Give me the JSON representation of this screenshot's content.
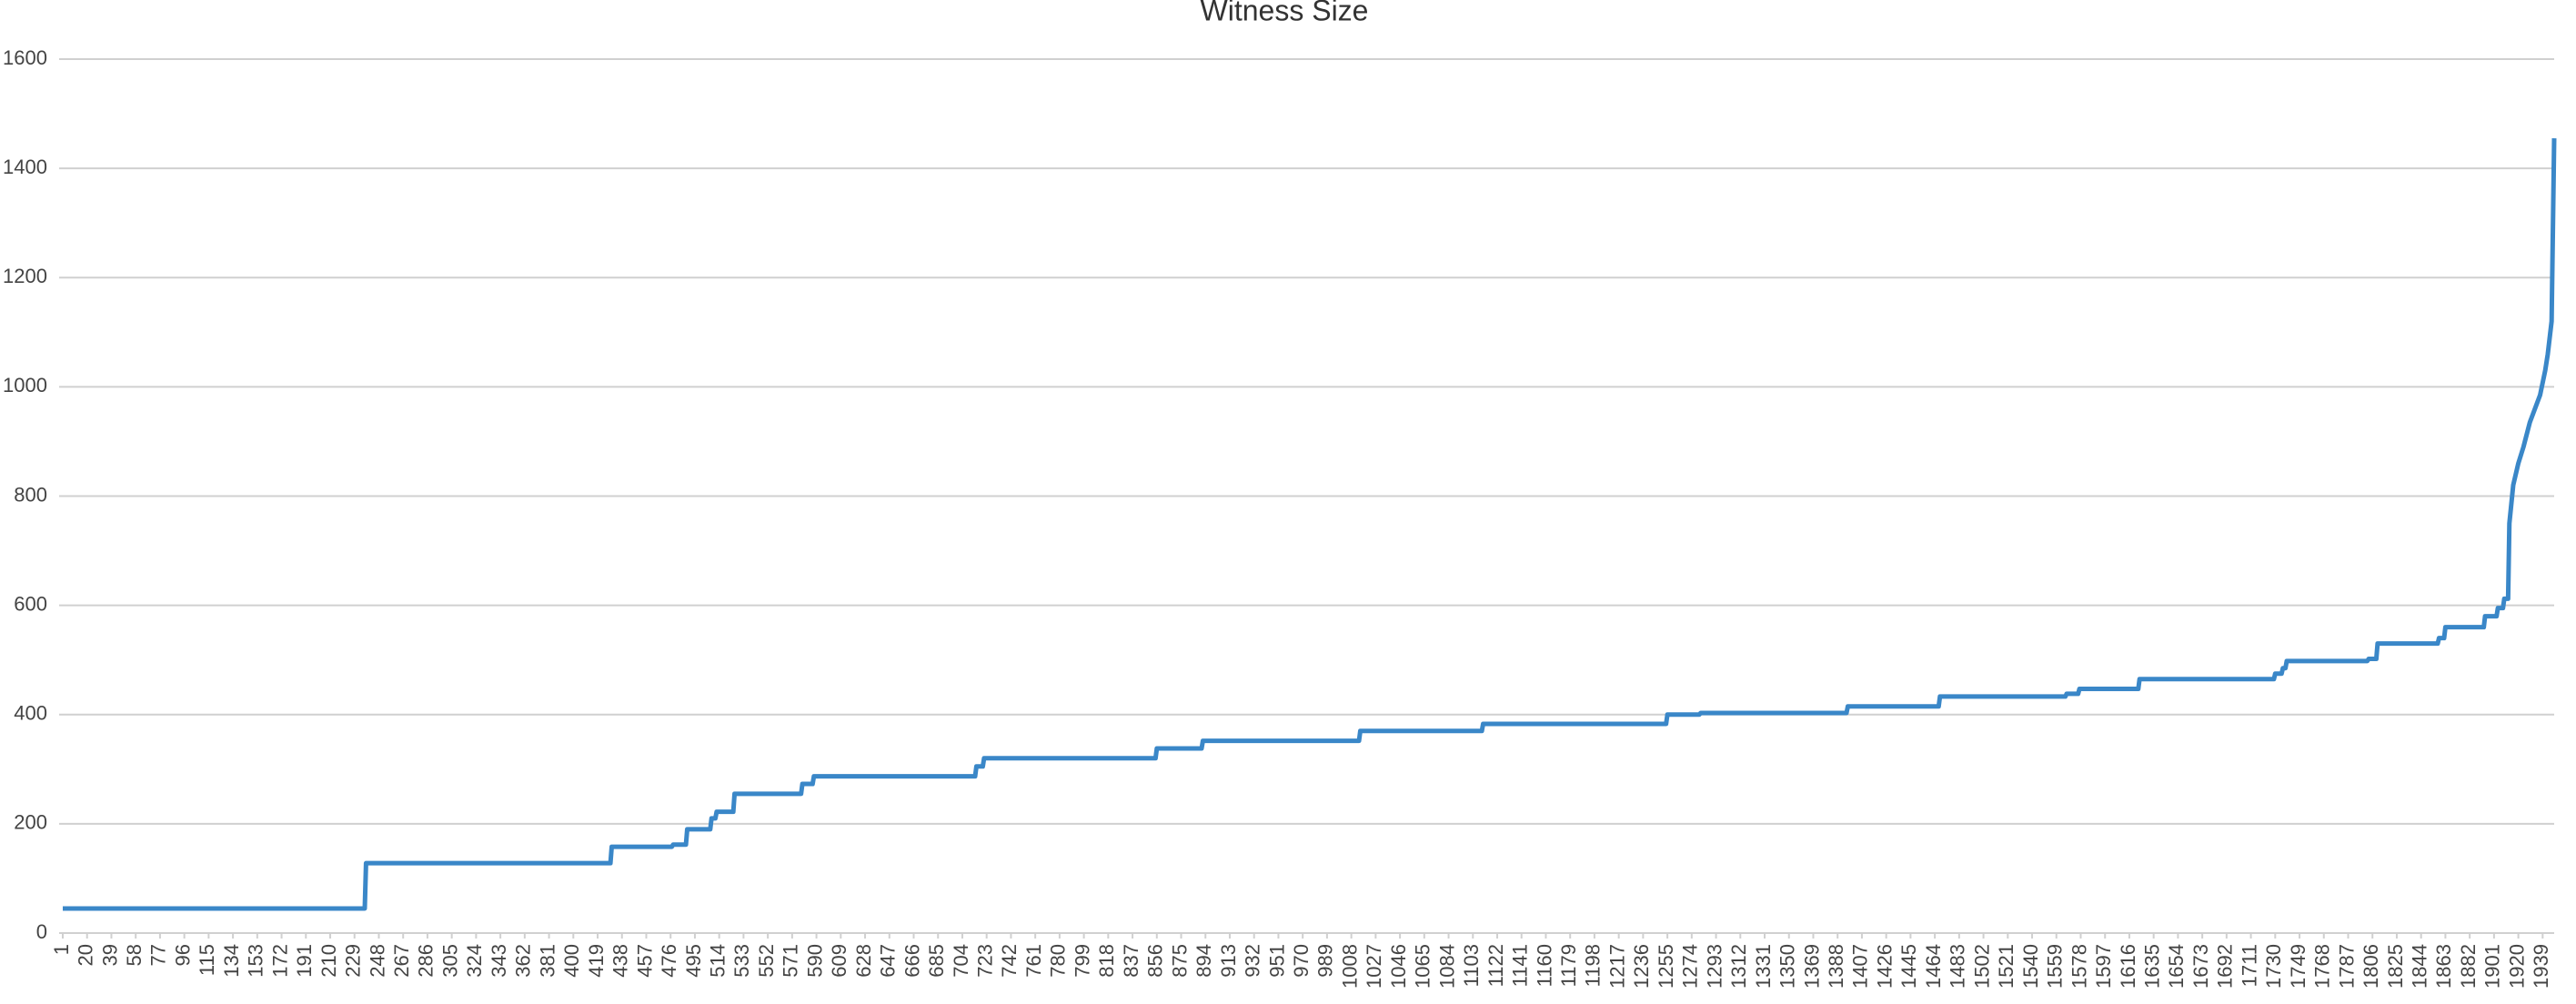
{
  "chart_data": {
    "type": "line",
    "title": "Witness Size",
    "x": [
      1,
      237,
      238,
      429,
      430,
      477,
      478,
      488,
      489,
      507,
      508,
      511,
      512,
      525,
      526,
      578,
      579,
      587,
      588,
      714,
      715,
      720,
      721,
      855,
      856,
      891,
      892,
      1014,
      1015,
      1110,
      1111,
      1254,
      1255,
      1280,
      1281,
      1395,
      1396,
      1467,
      1468,
      1566,
      1567,
      1576,
      1577,
      1623,
      1624,
      1729,
      1730,
      1735,
      1736,
      1738,
      1739,
      1802,
      1803,
      1809,
      1810,
      1857,
      1858,
      1862,
      1863,
      1893,
      1894,
      1903,
      1904,
      1908,
      1909,
      1912,
      1913,
      1916,
      1920,
      1924,
      1929,
      1933,
      1937,
      1941,
      1943,
      1946,
      1948
    ],
    "series": [
      {
        "color": "#3a87c8",
        "values": [
          45,
          45,
          128,
          128,
          158,
          158,
          162,
          162,
          190,
          190,
          210,
          210,
          222,
          222,
          255,
          255,
          273,
          273,
          287,
          287,
          305,
          305,
          320,
          320,
          338,
          338,
          352,
          352,
          370,
          370,
          383,
          383,
          400,
          400,
          403,
          403,
          415,
          415,
          433,
          433,
          438,
          438,
          447,
          447,
          465,
          465,
          475,
          475,
          485,
          485,
          498,
          498,
          502,
          502,
          530,
          530,
          540,
          540,
          560,
          560,
          580,
          580,
          595,
          595,
          612,
          612,
          750,
          820,
          860,
          890,
          935,
          960,
          985,
          1030,
          1060,
          1120,
          1455
        ]
      }
    ],
    "xlim": [
      1,
      1948
    ],
    "xticks": [
      1,
      20,
      39,
      58,
      77,
      96,
      115,
      134,
      153,
      172,
      191,
      210,
      229,
      248,
      267,
      286,
      305,
      324,
      343,
      362,
      381,
      400,
      419,
      438,
      457,
      476,
      495,
      514,
      533,
      552,
      571,
      590,
      609,
      628,
      647,
      666,
      685,
      704,
      723,
      742,
      761,
      780,
      799,
      818,
      837,
      856,
      875,
      894,
      913,
      932,
      951,
      970,
      989,
      1008,
      1027,
      1046,
      1065,
      1084,
      1103,
      1122,
      1141,
      1160,
      1179,
      1198,
      1217,
      1236,
      1255,
      1274,
      1293,
      1312,
      1331,
      1350,
      1369,
      1388,
      1407,
      1426,
      1445,
      1464,
      1483,
      1502,
      1521,
      1540,
      1559,
      1578,
      1597,
      1616,
      1635,
      1654,
      1673,
      1692,
      1711,
      1730,
      1749,
      1768,
      1787,
      1806,
      1825,
      1844,
      1863,
      1882,
      1901,
      1920,
      1939
    ],
    "ylim": [
      0,
      1600
    ],
    "yticks": [
      0,
      200,
      400,
      600,
      800,
      1000,
      1200,
      1400,
      1600
    ],
    "grid": true
  }
}
